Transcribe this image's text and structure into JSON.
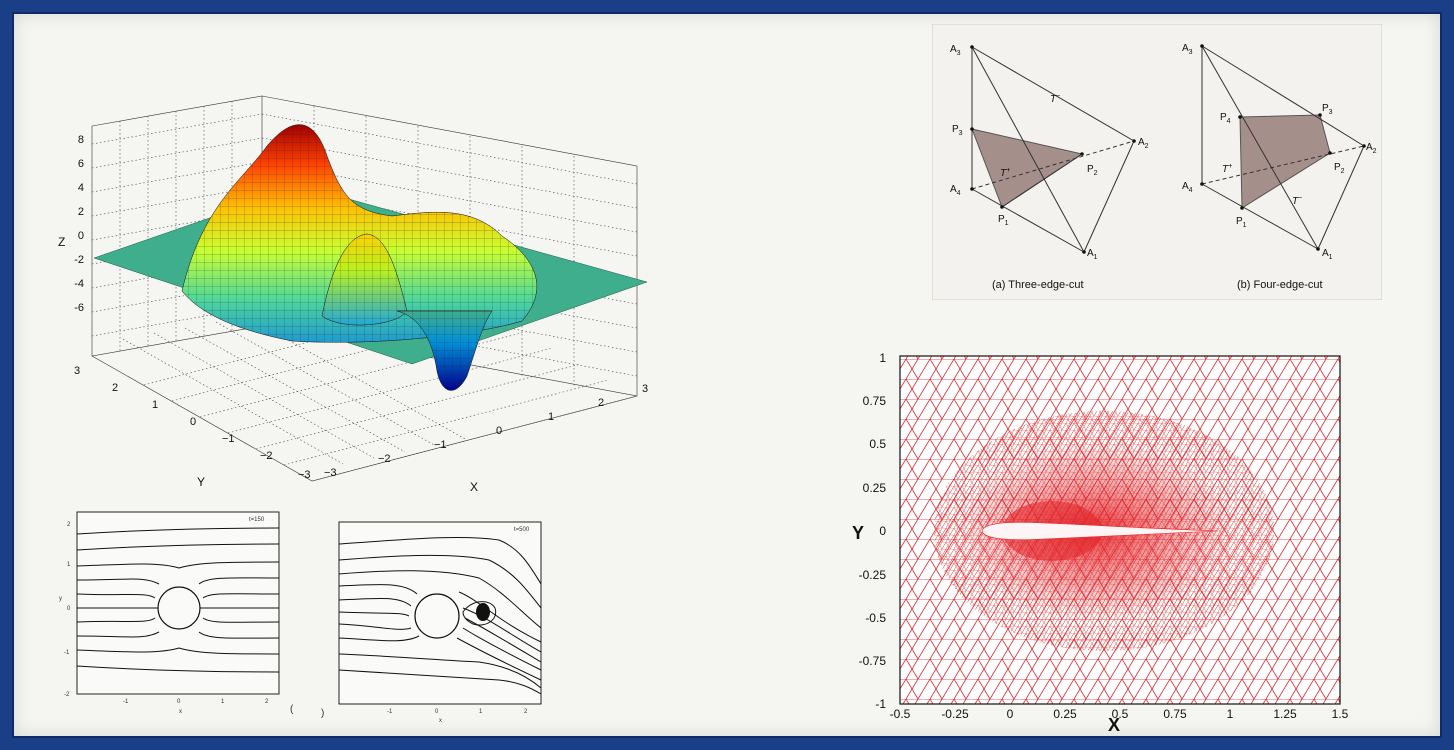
{
  "surface_plot": {
    "z_label": "Z",
    "y_label": "Y",
    "x_label": "X",
    "z_ticks": [
      "8",
      "6",
      "4",
      "2",
      "0",
      "-2",
      "-4",
      "-6"
    ],
    "y_ticks": [
      "3",
      "2",
      "1",
      "0",
      "−1",
      "−2",
      "−3"
    ],
    "x_ticks": [
      "−3",
      "−2",
      "−1",
      "0",
      "1",
      "2",
      "3"
    ],
    "colormap": [
      "#00008f",
      "#0050ff",
      "#00c8ff",
      "#50ff9f",
      "#c8ff30",
      "#ffd000",
      "#ff5000",
      "#9f0000"
    ],
    "plane_color": "#3fae8c"
  },
  "tetra_figure": {
    "left": {
      "caption": "(a) Three-edge-cut",
      "vertices": [
        "A",
        "A",
        "A",
        "A"
      ],
      "vertex_subs": [
        "3",
        "2",
        "1",
        "4"
      ],
      "points": [
        "P",
        "P",
        "P"
      ],
      "point_subs": [
        "3",
        "2",
        "1"
      ],
      "regions": [
        "T",
        "T"
      ]
    },
    "right": {
      "caption": "(b) Four-edge-cut",
      "vertices": [
        "A",
        "A",
        "A",
        "A"
      ],
      "vertex_subs": [
        "3",
        "2",
        "1",
        "4"
      ],
      "points": [
        "P",
        "P",
        "P",
        "P"
      ],
      "point_subs": [
        "4",
        "3",
        "2",
        "1"
      ],
      "regions": [
        "T",
        "T"
      ]
    },
    "fill_color": "#a58f8a"
  },
  "streamlines": {
    "left": {
      "time_label": "t=150",
      "x_label": "x",
      "y_label": "y",
      "tick_left": [
        "2",
        "1",
        "0",
        "-1",
        "-2"
      ],
      "tick_bottom": [
        "-1",
        "0",
        "1",
        "2"
      ]
    },
    "right": {
      "time_label": "t=500",
      "x_label": "x",
      "tick_bottom": [
        "-1",
        "0",
        "1",
        "2"
      ]
    },
    "paren_open": "(",
    "paren_close": ")"
  },
  "mesh_plot": {
    "x_label": "X",
    "y_label": "Y",
    "x_ticks": [
      "-0.5",
      "-0.25",
      "0",
      "0.25",
      "0.5",
      "0.75",
      "1",
      "1.25",
      "1.5"
    ],
    "y_ticks": [
      "1",
      "0.75",
      "0.5",
      "0.25",
      "0",
      "-0.25",
      "-0.5",
      "-0.75",
      "-1"
    ],
    "mesh_color": "#e3262b"
  }
}
